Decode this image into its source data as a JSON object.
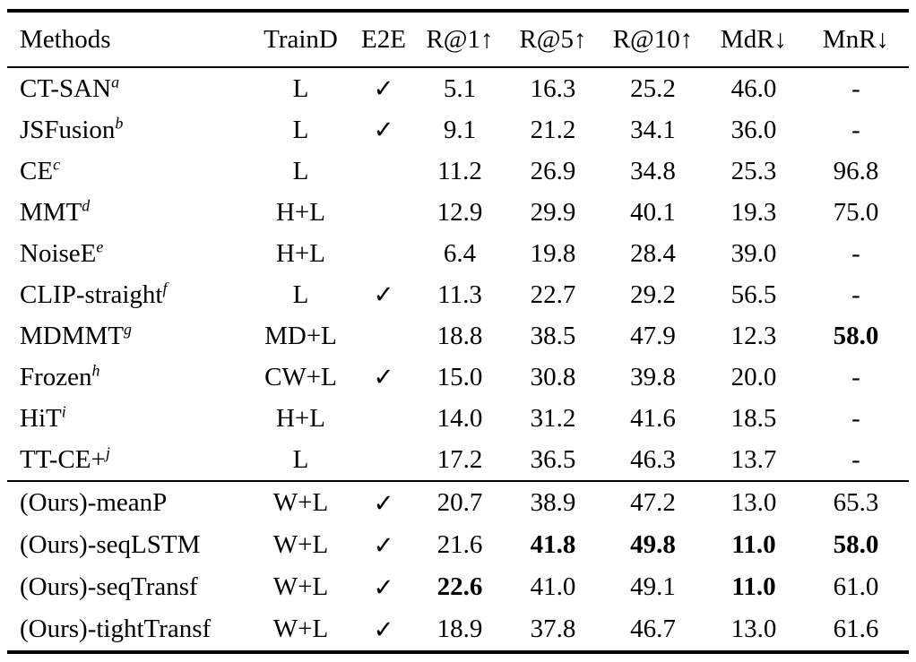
{
  "colors": {
    "background": "#ffffff",
    "text": "#000000",
    "rule": "#000000"
  },
  "table": {
    "checkmark_glyph": "✓",
    "columns": [
      {
        "key": "method",
        "label": "Methods"
      },
      {
        "key": "traind",
        "label": "TrainD"
      },
      {
        "key": "e2e",
        "label": "E2E"
      },
      {
        "key": "r1",
        "label": "R@1↑"
      },
      {
        "key": "r5",
        "label": "R@5↑"
      },
      {
        "key": "r10",
        "label": "R@10↑"
      },
      {
        "key": "mdr",
        "label": "MdR↓"
      },
      {
        "key": "mnr",
        "label": "MnR↓"
      }
    ],
    "sections": [
      {
        "name": "baselines",
        "rows": [
          {
            "method": "CT-SAN",
            "sup": "a",
            "traind": "L",
            "e2e": true,
            "r1": "5.1",
            "r5": "16.3",
            "r10": "25.2",
            "mdr": "46.0",
            "mnr": "-",
            "bold": []
          },
          {
            "method": "JSFusion",
            "sup": "b",
            "traind": "L",
            "e2e": true,
            "r1": "9.1",
            "r5": "21.2",
            "r10": "34.1",
            "mdr": "36.0",
            "mnr": "-",
            "bold": []
          },
          {
            "method": "CE",
            "sup": "c",
            "traind": "L",
            "e2e": false,
            "r1": "11.2",
            "r5": "26.9",
            "r10": "34.8",
            "mdr": "25.3",
            "mnr": "96.8",
            "bold": []
          },
          {
            "method": "MMT",
            "sup": "d",
            "traind": "H+L",
            "e2e": false,
            "r1": "12.9",
            "r5": "29.9",
            "r10": "40.1",
            "mdr": "19.3",
            "mnr": "75.0",
            "bold": []
          },
          {
            "method": "NoiseE",
            "sup": "e",
            "traind": "H+L",
            "e2e": false,
            "r1": "6.4",
            "r5": "19.8",
            "r10": "28.4",
            "mdr": "39.0",
            "mnr": "-",
            "bold": []
          },
          {
            "method": "CLIP-straight",
            "sup": "f",
            "traind": "L",
            "e2e": true,
            "r1": "11.3",
            "r5": "22.7",
            "r10": "29.2",
            "mdr": "56.5",
            "mnr": "-",
            "bold": []
          },
          {
            "method": "MDMMT",
            "sup": "g",
            "traind": "MD+L",
            "e2e": false,
            "r1": "18.8",
            "r5": "38.5",
            "r10": "47.9",
            "mdr": "12.3",
            "mnr": "58.0",
            "bold": [
              "mnr"
            ]
          },
          {
            "method": "Frozen",
            "sup": "h",
            "traind": "CW+L",
            "e2e": true,
            "r1": "15.0",
            "r5": "30.8",
            "r10": "39.8",
            "mdr": "20.0",
            "mnr": "-",
            "bold": []
          },
          {
            "method": "HiT",
            "sup": "i",
            "traind": "H+L",
            "e2e": false,
            "r1": "14.0",
            "r5": "31.2",
            "r10": "41.6",
            "mdr": "18.5",
            "mnr": "-",
            "bold": []
          },
          {
            "method": "TT-CE+",
            "sup": "j",
            "traind": "L",
            "e2e": false,
            "r1": "17.2",
            "r5": "36.5",
            "r10": "46.3",
            "mdr": "13.7",
            "mnr": "-",
            "bold": []
          }
        ]
      },
      {
        "name": "ours",
        "rows": [
          {
            "method": "(Ours)-meanP",
            "sup": "",
            "traind": "W+L",
            "e2e": true,
            "r1": "20.7",
            "r5": "38.9",
            "r10": "47.2",
            "mdr": "13.0",
            "mnr": "65.3",
            "bold": []
          },
          {
            "method": "(Ours)-seqLSTM",
            "sup": "",
            "traind": "W+L",
            "e2e": true,
            "r1": "21.6",
            "r5": "41.8",
            "r10": "49.8",
            "mdr": "11.0",
            "mnr": "58.0",
            "bold": [
              "r5",
              "r10",
              "mdr",
              "mnr"
            ]
          },
          {
            "method": "(Ours)-seqTransf",
            "sup": "",
            "traind": "W+L",
            "e2e": true,
            "r1": "22.6",
            "r5": "41.0",
            "r10": "49.1",
            "mdr": "11.0",
            "mnr": "61.0",
            "bold": [
              "r1",
              "mdr"
            ]
          },
          {
            "method": "(Ours)-tightTransf",
            "sup": "",
            "traind": "W+L",
            "e2e": true,
            "r1": "18.9",
            "r5": "37.8",
            "r10": "46.7",
            "mdr": "13.0",
            "mnr": "61.6",
            "bold": []
          }
        ]
      }
    ]
  }
}
